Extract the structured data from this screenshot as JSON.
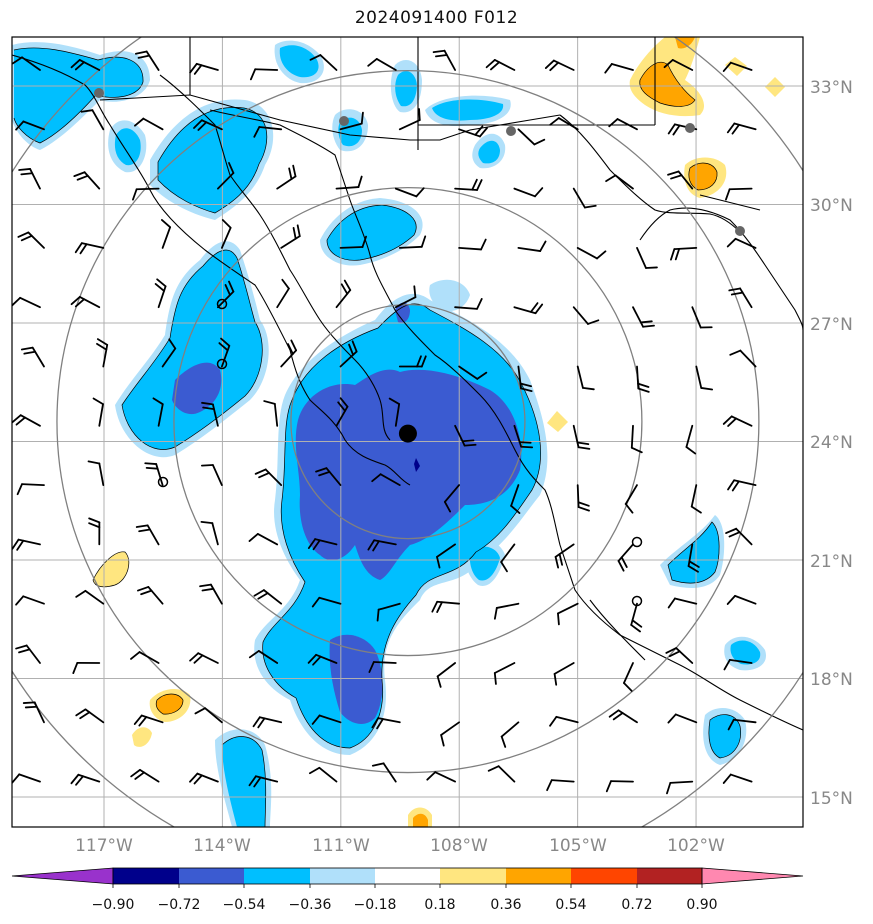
{
  "title": "2024091400 F012",
  "latitude_labels": [
    "33°N",
    "30°N",
    "27°N",
    "24°N",
    "21°N",
    "18°N",
    "15°N"
  ],
  "longitude_labels": [
    "117°W",
    "114°W",
    "111°W",
    "108°W",
    "105°W",
    "102°W"
  ],
  "colorbar": {
    "tick_labels": [
      "−0.90",
      "−0.72",
      "−0.54",
      "−0.36",
      "−0.18",
      "0.18",
      "0.36",
      "0.54",
      "0.72",
      "0.90"
    ],
    "colors": [
      "#9932cc",
      "#00008b",
      "#3b5bd1",
      "#00bfff",
      "#b0e0fa",
      "#ffffff",
      "#ffe680",
      "#ffa500",
      "#ff4500",
      "#b22222",
      "#ff88b0"
    ]
  },
  "storm_center": {
    "lat": 24.2,
    "lon": -109.3
  },
  "chart_data": {
    "type": "heatmap",
    "title": "2024091400 F012",
    "lat_range": [
      14.3,
      34.2
    ],
    "lon_range": [
      -119.3,
      -99.3
    ],
    "levels": [
      -0.9,
      -0.72,
      -0.54,
      -0.36,
      -0.18,
      0.18,
      0.36,
      0.54,
      0.72,
      0.9
    ],
    "range_rings_deg": [
      2.85,
      5.7,
      8.55,
      11.4
    ]
  }
}
